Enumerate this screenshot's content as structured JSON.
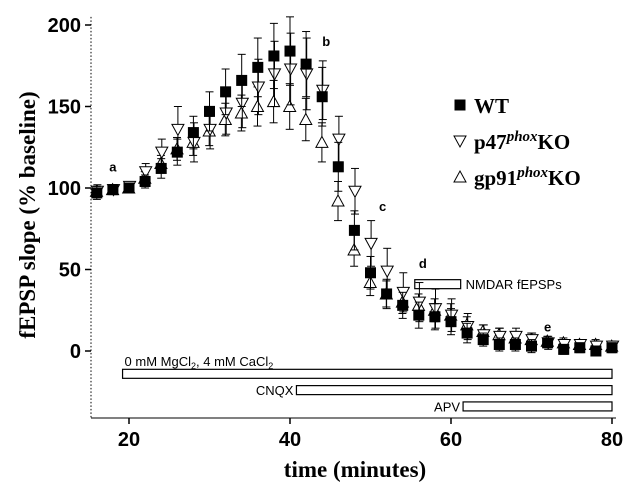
{
  "chart_data": {
    "type": "scatter",
    "xlabel": "time (minutes)",
    "ylabel": "fEPSP slope (% baseline)",
    "xlim": [
      15,
      80
    ],
    "ylim": [
      -42,
      205
    ],
    "x_ticks": [
      "20",
      "40",
      "60",
      "80"
    ],
    "y_ticks": [
      "0",
      "50",
      "100",
      "150",
      "200"
    ],
    "legend": {
      "position": "right",
      "entries": [
        {
          "marker": "square-filled",
          "label": "WT",
          "ko": ""
        },
        {
          "marker": "triangle-down-open",
          "label": "p47",
          "sup": "phox",
          "ko": "KO"
        },
        {
          "marker": "triangle-up-open",
          "label": "gp91",
          "sup": "phox",
          "ko": "KO"
        }
      ]
    },
    "series": [
      {
        "name": "WT",
        "marker": "square-filled",
        "points": [
          [
            16,
            97,
            4
          ],
          [
            18,
            99,
            3
          ],
          [
            20,
            100,
            3
          ],
          [
            22,
            104,
            4
          ],
          [
            24,
            112,
            6
          ],
          [
            26,
            122,
            8
          ],
          [
            28,
            134,
            10
          ],
          [
            30,
            147,
            12
          ],
          [
            32,
            159,
            14
          ],
          [
            34,
            166,
            16
          ],
          [
            36,
            174,
            18
          ],
          [
            38,
            181,
            20
          ],
          [
            40,
            184,
            21
          ],
          [
            42,
            176,
            20
          ],
          [
            44,
            156,
            18
          ],
          [
            46,
            113,
            15
          ],
          [
            48,
            74,
            12
          ],
          [
            50,
            48,
            10
          ],
          [
            52,
            35,
            9
          ],
          [
            54,
            28,
            8
          ],
          [
            56,
            22,
            8
          ],
          [
            58,
            21,
            8
          ],
          [
            60,
            18,
            8
          ],
          [
            62,
            11,
            6
          ],
          [
            64,
            7,
            4
          ],
          [
            66,
            4,
            4
          ],
          [
            68,
            4,
            4
          ],
          [
            70,
            3,
            4
          ],
          [
            72,
            5,
            3
          ],
          [
            74,
            1,
            3
          ],
          [
            76,
            2,
            3
          ],
          [
            78,
            0,
            3
          ],
          [
            80,
            2,
            3
          ]
        ]
      },
      {
        "name": "p47phoxKO",
        "marker": "triangle-down-open",
        "points": [
          [
            16,
            98,
            4
          ],
          [
            18,
            99,
            3
          ],
          [
            20,
            101,
            3
          ],
          [
            22,
            110,
            5
          ],
          [
            24,
            122,
            8
          ],
          [
            26,
            136,
            14
          ],
          [
            28,
            128,
            12
          ],
          [
            30,
            136,
            12
          ],
          [
            32,
            146,
            13
          ],
          [
            34,
            152,
            15
          ],
          [
            36,
            162,
            17
          ],
          [
            38,
            170,
            20
          ],
          [
            40,
            173,
            22
          ],
          [
            42,
            170,
            22
          ],
          [
            44,
            160,
            18
          ],
          [
            46,
            130,
            14
          ],
          [
            48,
            98,
            14
          ],
          [
            50,
            66,
            14
          ],
          [
            52,
            49,
            14
          ],
          [
            54,
            36,
            12
          ],
          [
            56,
            30,
            12
          ],
          [
            58,
            26,
            12
          ],
          [
            60,
            22,
            10
          ],
          [
            62,
            15,
            8
          ],
          [
            64,
            10,
            6
          ],
          [
            66,
            9,
            5
          ],
          [
            68,
            9,
            5
          ],
          [
            70,
            7,
            4
          ],
          [
            72,
            5,
            4
          ],
          [
            74,
            4,
            3
          ],
          [
            76,
            4,
            3
          ],
          [
            78,
            3,
            3
          ],
          [
            80,
            3,
            3
          ]
        ]
      },
      {
        "name": "gp91phoxKO",
        "marker": "triangle-up-open",
        "points": [
          [
            16,
            98,
            3
          ],
          [
            18,
            99,
            3
          ],
          [
            20,
            100,
            3
          ],
          [
            22,
            106,
            4
          ],
          [
            24,
            115,
            5
          ],
          [
            26,
            124,
            7
          ],
          [
            28,
            128,
            8
          ],
          [
            30,
            135,
            9
          ],
          [
            32,
            142,
            10
          ],
          [
            34,
            146,
            11
          ],
          [
            36,
            150,
            12
          ],
          [
            38,
            153,
            13
          ],
          [
            40,
            150,
            14
          ],
          [
            42,
            142,
            13
          ],
          [
            44,
            128,
            12
          ],
          [
            46,
            92,
            12
          ],
          [
            48,
            62,
            10
          ],
          [
            50,
            42,
            8
          ],
          [
            52,
            35,
            8
          ],
          [
            54,
            30,
            7
          ],
          [
            56,
            28,
            7
          ],
          [
            58,
            25,
            7
          ],
          [
            60,
            22,
            7
          ],
          [
            62,
            16,
            5
          ],
          [
            64,
            12,
            4
          ],
          [
            66,
            10,
            4
          ],
          [
            68,
            8,
            4
          ],
          [
            70,
            7,
            4
          ],
          [
            72,
            6,
            3
          ],
          [
            74,
            5,
            3
          ],
          [
            76,
            4,
            3
          ],
          [
            78,
            4,
            3
          ],
          [
            80,
            3,
            3
          ]
        ]
      }
    ],
    "annotations": [
      {
        "text": "a",
        "x": 18,
        "y": 110
      },
      {
        "text": "b",
        "x": 44.5,
        "y": 187
      },
      {
        "text": "c",
        "x": 51.5,
        "y": 86
      },
      {
        "text": "d",
        "x": 56.5,
        "y": 51
      },
      {
        "text": "e",
        "x": 72,
        "y": 12
      }
    ],
    "bars": [
      {
        "label": "NMDAR fEPSPs",
        "x0": 55.5,
        "x1": 61.2,
        "y": 41,
        "label_side": "right"
      },
      {
        "label_main": "0 mM MgCl",
        "label_sub1": "2",
        "label_mid": ", 4 mM CaCl",
        "label_sub2": "2",
        "x0": 19.2,
        "x1": 80,
        "y": -14,
        "label_side": "above-left"
      },
      {
        "label": "CNQX",
        "x0": 40.8,
        "x1": 80,
        "y": -24,
        "label_side": "left"
      },
      {
        "label": "APV",
        "x0": 61.5,
        "x1": 80,
        "y": -34,
        "label_side": "left"
      }
    ]
  }
}
